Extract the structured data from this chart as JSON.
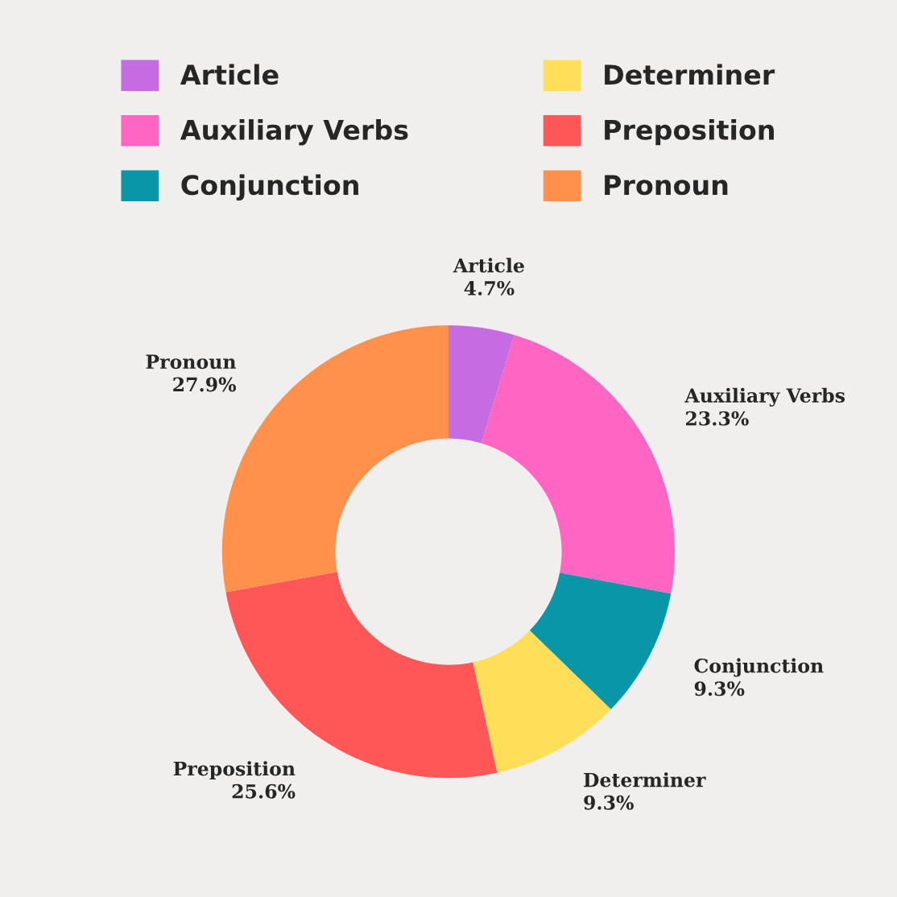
{
  "chart_data": {
    "type": "donut",
    "categories": [
      "Article",
      "Auxiliary Verbs",
      "Conjunction",
      "Determiner",
      "Preposition",
      "Pronoun"
    ],
    "values": [
      4.7,
      23.3,
      9.3,
      9.3,
      25.6,
      27.9
    ],
    "value_labels": [
      "4.7%",
      "23.3%",
      "9.3%",
      "9.3%",
      "25.6%",
      "27.9%"
    ],
    "colors": [
      "#c76be3",
      "#ff66c4",
      "#0896a8",
      "#ffde59",
      "#ff5757",
      "#ff914d"
    ],
    "legend": "top"
  }
}
